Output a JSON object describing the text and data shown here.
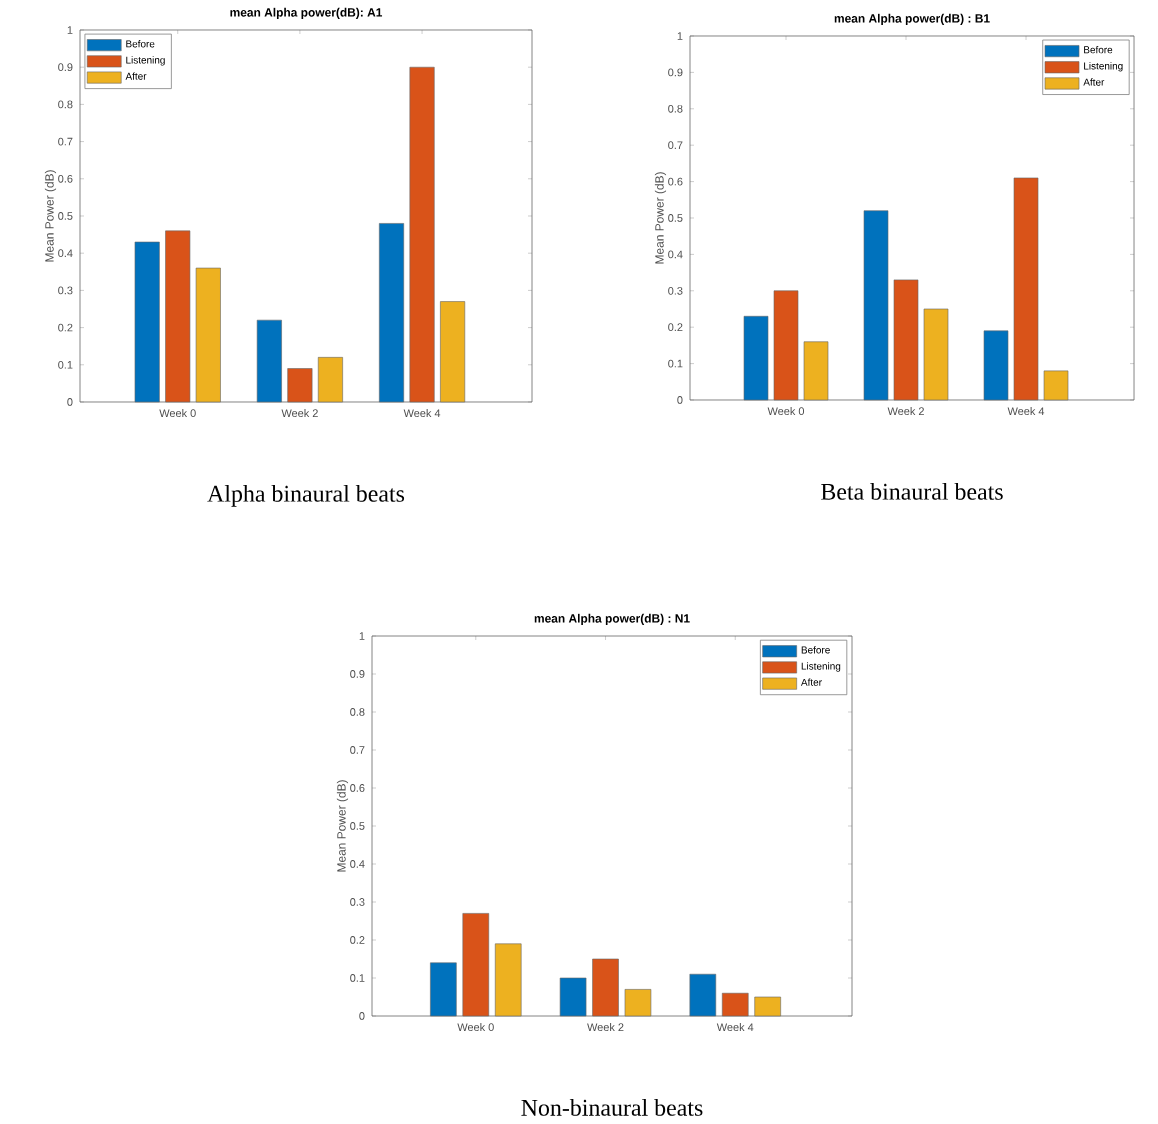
{
  "chart_data": [
    {
      "type": "bar",
      "title": "mean Alpha power(dB): A1",
      "ylabel": "Mean Power (dB)",
      "categories": [
        "Week 0",
        "Week 2",
        "Week 4"
      ],
      "series": [
        {
          "name": "Before",
          "color": "#0072bd",
          "values": [
            0.43,
            0.22,
            0.48
          ]
        },
        {
          "name": "Listening",
          "color": "#d95319",
          "values": [
            0.46,
            0.09,
            0.9
          ]
        },
        {
          "name": "After",
          "color": "#edb120",
          "values": [
            0.36,
            0.12,
            0.27
          ]
        }
      ],
      "ylim": [
        0,
        1
      ],
      "yticks": [
        0,
        0.1,
        0.2,
        0.3,
        0.4,
        0.5,
        0.6,
        0.7,
        0.8,
        0.9,
        1
      ],
      "legend": "top left",
      "annotations": [
        "Alpha binaural beats"
      ]
    },
    {
      "type": "bar",
      "title": "mean Alpha power(dB) : B1",
      "ylabel": "Mean Power (dB)",
      "categories": [
        "Week 0",
        "Week 2",
        "Week 4"
      ],
      "series": [
        {
          "name": "Before",
          "color": "#0072bd",
          "values": [
            0.23,
            0.52,
            0.19
          ]
        },
        {
          "name": "Listening",
          "color": "#d95319",
          "values": [
            0.3,
            0.33,
            0.61
          ]
        },
        {
          "name": "After",
          "color": "#edb120",
          "values": [
            0.16,
            0.25,
            0.08
          ]
        }
      ],
      "ylim": [
        0,
        1
      ],
      "yticks": [
        0,
        0.1,
        0.2,
        0.3,
        0.4,
        0.5,
        0.6,
        0.7,
        0.8,
        0.9,
        1
      ],
      "legend": "top right",
      "annotations": [
        "Beta binaural beats"
      ]
    },
    {
      "type": "bar",
      "title": "mean Alpha power(dB) : N1",
      "ylabel": "Mean Power (dB)",
      "categories": [
        "Week 0",
        "Week 2",
        "Week 4"
      ],
      "series": [
        {
          "name": "Before",
          "color": "#0072bd",
          "values": [
            0.14,
            0.1,
            0.11
          ]
        },
        {
          "name": "Listening",
          "color": "#d95319",
          "values": [
            0.27,
            0.15,
            0.06
          ]
        },
        {
          "name": "After",
          "color": "#edb120",
          "values": [
            0.19,
            0.07,
            0.05
          ]
        }
      ],
      "ylim": [
        0,
        1
      ],
      "yticks": [
        0,
        0.1,
        0.2,
        0.3,
        0.4,
        0.5,
        0.6,
        0.7,
        0.8,
        0.9,
        1
      ],
      "legend": "top right",
      "annotations": [
        "Non-binaural beats"
      ]
    }
  ]
}
